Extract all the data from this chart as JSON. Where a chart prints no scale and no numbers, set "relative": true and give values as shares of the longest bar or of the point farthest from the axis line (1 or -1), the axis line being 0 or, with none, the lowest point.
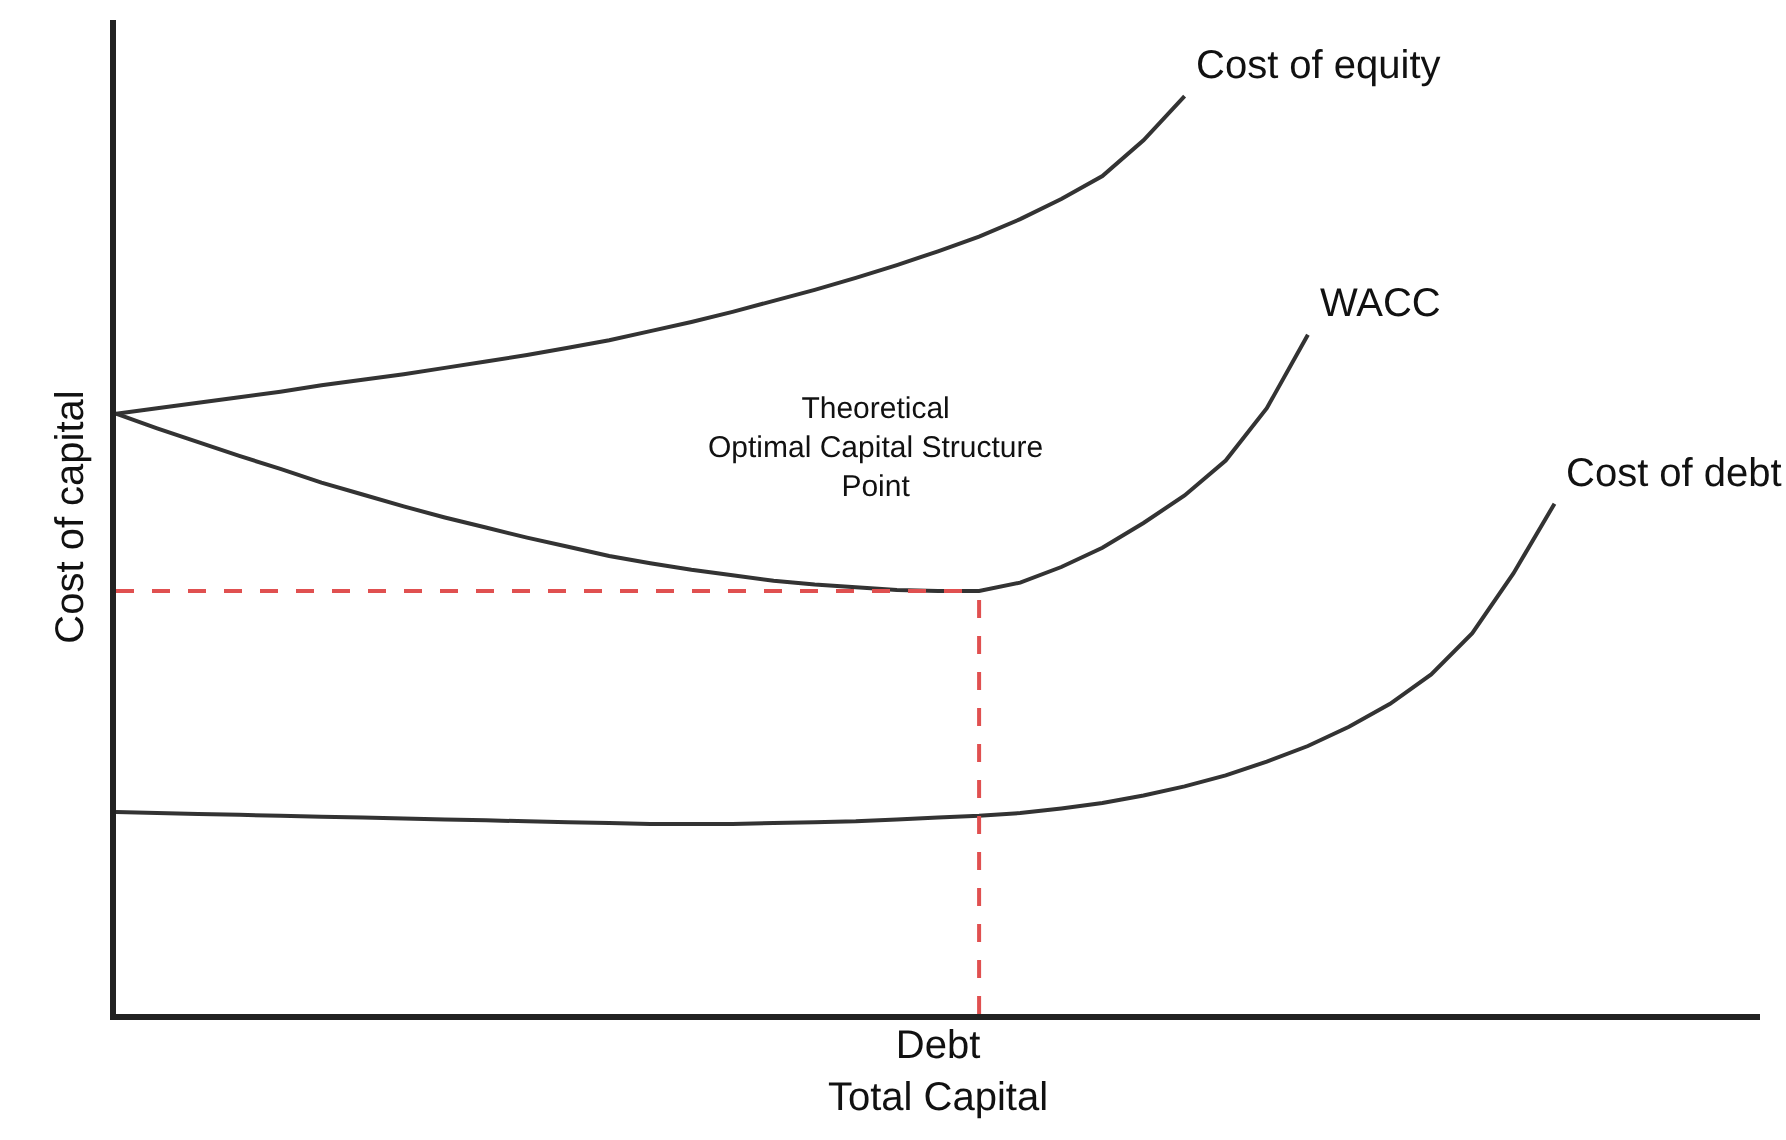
{
  "chart_data": {
    "type": "line",
    "relative": true,
    "ylabel": "Cost of capital",
    "xlabel": "Debt\nTotal Capital",
    "categories": [
      null,
      null,
      null,
      null,
      null,
      null,
      null,
      null,
      null,
      null,
      null,
      null,
      null,
      null,
      null,
      null,
      null,
      null,
      null,
      null,
      null,
      null,
      null,
      null,
      null,
      null,
      null,
      null,
      null,
      null,
      null,
      null,
      null,
      null,
      null,
      null,
      null,
      null,
      null,
      null,
      null
    ],
    "series": [
      {
        "name": "Cost of equity",
        "color": "#333333",
        "values": [
          0.654,
          0.66,
          0.666,
          0.672,
          0.678,
          0.685,
          0.691,
          0.697,
          0.704,
          0.711,
          0.718,
          0.726,
          0.734,
          0.744,
          0.754,
          0.765,
          0.777,
          0.789,
          0.802,
          0.816,
          0.831,
          0.847,
          0.866,
          0.888,
          0.913,
          0.952,
          1,
          null,
          null,
          null,
          null,
          null,
          null,
          null,
          null,
          null,
          null,
          null,
          null,
          null,
          null
        ]
      },
      {
        "name": "WACC",
        "color": "#333333",
        "values": [
          0.654,
          0.638,
          0.623,
          0.608,
          0.594,
          0.579,
          0.566,
          0.553,
          0.541,
          0.53,
          0.519,
          0.509,
          0.499,
          0.491,
          0.484,
          0.478,
          0.472,
          0.468,
          0.465,
          0.462,
          0.461,
          0.461,
          0.47,
          0.487,
          0.508,
          0.535,
          0.565,
          0.603,
          0.66,
          0.74,
          null,
          null,
          null,
          null,
          null,
          null,
          null,
          null,
          null,
          null,
          null
        ]
      },
      {
        "name": "Cost of debt",
        "color": "#333333",
        "values": [
          0.22,
          0.219,
          0.218,
          0.217,
          0.216,
          0.215,
          0.214,
          0.213,
          0.212,
          0.211,
          0.21,
          0.209,
          0.208,
          0.207,
          0.207,
          0.207,
          0.208,
          0.209,
          0.21,
          0.212,
          0.214,
          0.216,
          0.219,
          0.224,
          0.23,
          0.238,
          0.248,
          0.26,
          0.275,
          0.292,
          0.313,
          0.338,
          0.37,
          0.415,
          0.48,
          0.556,
          null,
          null,
          null,
          null,
          null
        ]
      }
    ],
    "ref_lines": [
      {
        "axis": "y",
        "value": 0.461,
        "color": "#e05050",
        "line_style": "dashed"
      }
    ],
    "annotations": [
      "Theoretical\nOptimal Capital Structure\nPoint"
    ],
    "marker": "none",
    "line_style": "solid",
    "grid": false,
    "legend": false
  }
}
